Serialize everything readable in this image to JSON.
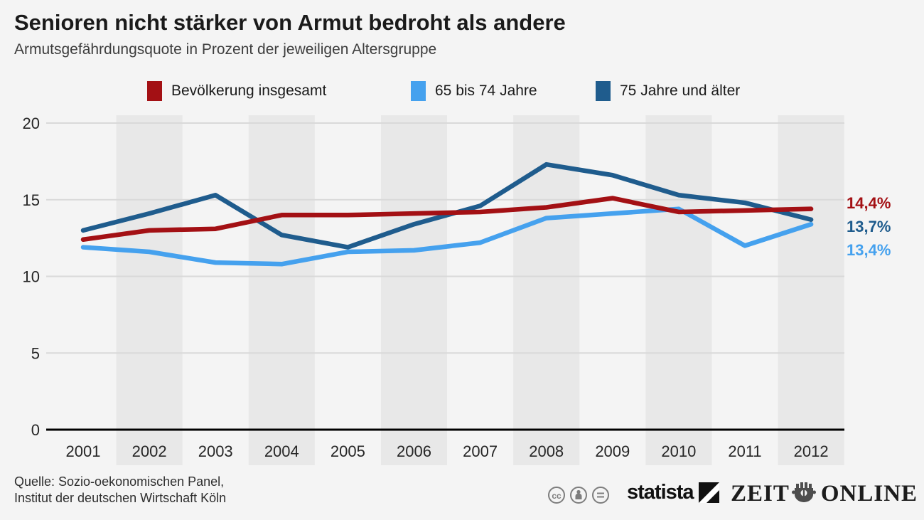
{
  "header": {
    "title": "Senioren nicht stärker von Armut bedroht als andere",
    "subtitle": "Armutsgefährdungsquote in Prozent der jeweiligen Altersgruppe"
  },
  "chart_data": {
    "type": "line",
    "title": "Senioren nicht stärker von Armut bedroht als andere",
    "subtitle": "Armutsgefährdungsquote in Prozent der jeweiligen Altersgruppe",
    "categories": [
      "2001",
      "2002",
      "2003",
      "2004",
      "2005",
      "2006",
      "2007",
      "2008",
      "2009",
      "2010",
      "2011",
      "2012"
    ],
    "ylim": [
      0,
      20
    ],
    "yticks": [
      0,
      5,
      10,
      15,
      20
    ],
    "grid": "horizontal",
    "legend_position": "top",
    "series": [
      {
        "name": "Bevölkerung insgesamt",
        "color": "#a31014",
        "end_label": "14,4%",
        "values": [
          12.4,
          13.0,
          13.1,
          14.0,
          14.0,
          14.1,
          14.2,
          14.5,
          15.1,
          14.2,
          14.3,
          14.4
        ]
      },
      {
        "name": "65 bis 74 Jahre",
        "color": "#45a1ee",
        "end_label": "13,4%",
        "values": [
          11.9,
          11.6,
          10.9,
          10.8,
          11.6,
          11.7,
          12.2,
          13.8,
          14.1,
          14.4,
          12.0,
          13.4
        ]
      },
      {
        "name": "75 Jahre und älter",
        "color": "#1f5c8d",
        "end_label": "13,7%",
        "values": [
          13.0,
          14.1,
          15.3,
          12.7,
          11.9,
          13.4,
          14.6,
          17.3,
          16.6,
          15.3,
          14.8,
          13.7
        ]
      }
    ]
  },
  "footer": {
    "source_line1": "Quelle: Sozio-oekonomischen Panel,",
    "source_line2": "Institut der deutschen Wirtschaft Köln",
    "license_icons": [
      "cc",
      "by",
      "nd"
    ],
    "statista_label": "statista",
    "zeit_label": "ZEIT",
    "online_label": "ONLINE"
  }
}
